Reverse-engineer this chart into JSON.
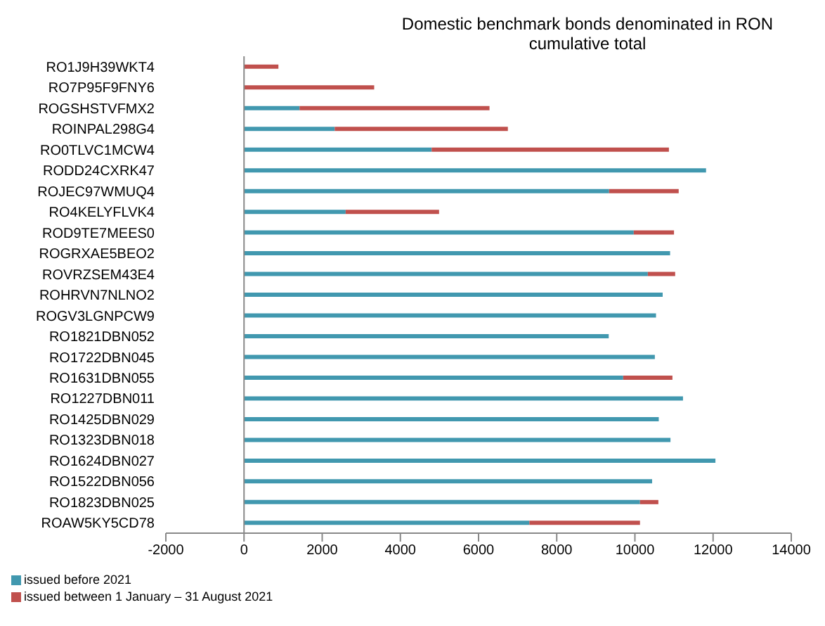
{
  "chart_data": {
    "type": "bar",
    "orientation": "horizontal",
    "stacked": true,
    "title": "Domestic benchmark bonds denominated in RON\ncumulative total",
    "categories": [
      "RO1J9H39WKT4",
      "RO7P95F9FNY6",
      "ROGSHSTVFMX2",
      "ROINPAL298G4",
      "RO0TLVC1MCW4",
      "RODD24CXRK47",
      "ROJEC97WMUQ4",
      "RO4KELYFLVK4",
      "ROD9TE7MEES0",
      "ROGRXAE5BEO2",
      "ROVRZSEM43E4",
      "ROHRVN7NLNO2",
      "ROGV3LGNPCW9",
      "RO1821DBN052",
      "RO1722DBN045",
      "RO1631DBN055",
      "RO1227DBN011",
      "RO1425DBN029",
      "RO1323DBN018",
      "RO1624DBN027",
      "RO1522DBN056",
      "RO1823DBN025",
      "ROAW5KY5CD78"
    ],
    "series": [
      {
        "name": "issued before 2021",
        "color": "#4198af",
        "values": [
          0,
          0,
          1420,
          2320,
          4800,
          11820,
          9340,
          2600,
          9970,
          10900,
          10330,
          10710,
          10540,
          9330,
          10510,
          9700,
          11230,
          10610,
          10910,
          12060,
          10440,
          10130,
          7300
        ]
      },
      {
        "name": "issued between 1 January – 31 August 2021",
        "color": "#c0504d",
        "values": [
          880,
          3330,
          4860,
          4430,
          6070,
          0,
          1780,
          2390,
          1030,
          0,
          700,
          0,
          0,
          0,
          0,
          1260,
          0,
          0,
          0,
          0,
          0,
          470,
          2830
        ]
      }
    ],
    "xlim": [
      -2000,
      14000
    ],
    "xticks": [
      -2000,
      0,
      2000,
      4000,
      6000,
      8000,
      10000,
      12000,
      14000
    ],
    "legend": "bottom left"
  }
}
